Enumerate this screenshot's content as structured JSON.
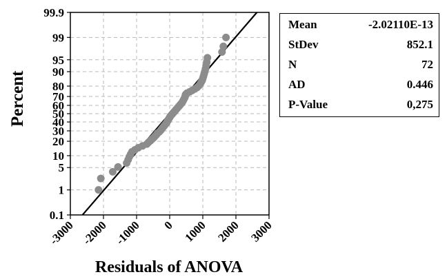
{
  "chart_data": {
    "type": "scatter",
    "title": "",
    "xlabel": "Residuals of ANOVA",
    "ylabel": "Percent",
    "xlim": [
      -3000,
      3000
    ],
    "x_ticks": [
      -3000,
      -2000,
      -1000,
      0,
      1000,
      2000,
      3000
    ],
    "x_tick_labels": [
      "-3000",
      "-2000",
      "-1000",
      "0",
      "1000",
      "2000",
      "3000"
    ],
    "y_scale": "normal-probability",
    "y_ticks": [
      0.1,
      1,
      5,
      10,
      20,
      30,
      40,
      50,
      60,
      70,
      80,
      90,
      95,
      99,
      99.9
    ],
    "y_tick_labels": [
      "0.1",
      "1",
      "5",
      "10",
      "20",
      "30",
      "40",
      "50",
      "60",
      "70",
      "80",
      "90",
      "95",
      "99",
      "99.9"
    ],
    "grid": true,
    "fit_line": {
      "mean": 0,
      "stdev": 852.1
    },
    "points": [
      {
        "x": -2150,
        "y": 1.0
      },
      {
        "x": -2080,
        "y": 2.4
      },
      {
        "x": -1720,
        "y": 3.8
      },
      {
        "x": -1560,
        "y": 5.2
      },
      {
        "x": -1300,
        "y": 6.6
      },
      {
        "x": -1255,
        "y": 8.0
      },
      {
        "x": -1220,
        "y": 9.4
      },
      {
        "x": -1180,
        "y": 10.8
      },
      {
        "x": -1140,
        "y": 12.2
      },
      {
        "x": -1050,
        "y": 13.5
      },
      {
        "x": -950,
        "y": 14.9
      },
      {
        "x": -820,
        "y": 16.3
      },
      {
        "x": -690,
        "y": 17.7
      },
      {
        "x": -640,
        "y": 19.1
      },
      {
        "x": -580,
        "y": 20.5
      },
      {
        "x": -530,
        "y": 21.9
      },
      {
        "x": -480,
        "y": 23.3
      },
      {
        "x": -440,
        "y": 24.7
      },
      {
        "x": -400,
        "y": 26.1
      },
      {
        "x": -370,
        "y": 27.5
      },
      {
        "x": -320,
        "y": 28.8
      },
      {
        "x": -280,
        "y": 30.2
      },
      {
        "x": -250,
        "y": 31.6
      },
      {
        "x": -220,
        "y": 33.0
      },
      {
        "x": -190,
        "y": 34.4
      },
      {
        "x": -160,
        "y": 35.8
      },
      {
        "x": -130,
        "y": 37.2
      },
      {
        "x": -100,
        "y": 38.6
      },
      {
        "x": -80,
        "y": 40.0
      },
      {
        "x": -60,
        "y": 41.4
      },
      {
        "x": -40,
        "y": 42.8
      },
      {
        "x": -20,
        "y": 44.1
      },
      {
        "x": 0,
        "y": 45.5
      },
      {
        "x": 20,
        "y": 46.9
      },
      {
        "x": 50,
        "y": 48.3
      },
      {
        "x": 80,
        "y": 49.7
      },
      {
        "x": 110,
        "y": 51.1
      },
      {
        "x": 140,
        "y": 52.5
      },
      {
        "x": 170,
        "y": 53.9
      },
      {
        "x": 200,
        "y": 55.3
      },
      {
        "x": 230,
        "y": 56.7
      },
      {
        "x": 260,
        "y": 58.1
      },
      {
        "x": 290,
        "y": 59.4
      },
      {
        "x": 320,
        "y": 60.8
      },
      {
        "x": 350,
        "y": 62.2
      },
      {
        "x": 380,
        "y": 63.6
      },
      {
        "x": 400,
        "y": 65.0
      },
      {
        "x": 420,
        "y": 66.4
      },
      {
        "x": 440,
        "y": 67.8
      },
      {
        "x": 460,
        "y": 69.2
      },
      {
        "x": 470,
        "y": 70.6
      },
      {
        "x": 480,
        "y": 72.0
      },
      {
        "x": 520,
        "y": 73.4
      },
      {
        "x": 600,
        "y": 74.7
      },
      {
        "x": 680,
        "y": 76.1
      },
      {
        "x": 760,
        "y": 77.5
      },
      {
        "x": 830,
        "y": 78.9
      },
      {
        "x": 880,
        "y": 80.3
      },
      {
        "x": 920,
        "y": 81.7
      },
      {
        "x": 950,
        "y": 83.1
      },
      {
        "x": 980,
        "y": 84.5
      },
      {
        "x": 1000,
        "y": 85.9
      },
      {
        "x": 1020,
        "y": 87.3
      },
      {
        "x": 1040,
        "y": 88.7
      },
      {
        "x": 1060,
        "y": 90.0
      },
      {
        "x": 1080,
        "y": 91.4
      },
      {
        "x": 1100,
        "y": 92.8
      },
      {
        "x": 1120,
        "y": 94.2
      },
      {
        "x": 1140,
        "y": 95.6
      },
      {
        "x": 1580,
        "y": 97.0
      },
      {
        "x": 1620,
        "y": 98.0
      },
      {
        "x": 1700,
        "y": 99.0
      }
    ]
  },
  "stats": {
    "rows": [
      {
        "label": "Mean",
        "value": "-2.02110E-13"
      },
      {
        "label": "StDev",
        "value": "852.1"
      },
      {
        "label": "N",
        "value": "72"
      },
      {
        "label": "AD",
        "value": "0.446"
      },
      {
        "label": "P-Value",
        "value": "0,275"
      }
    ]
  },
  "colors": {
    "point": "#8c8c8c",
    "line": "#000000",
    "grid": "#b8b8b8"
  }
}
